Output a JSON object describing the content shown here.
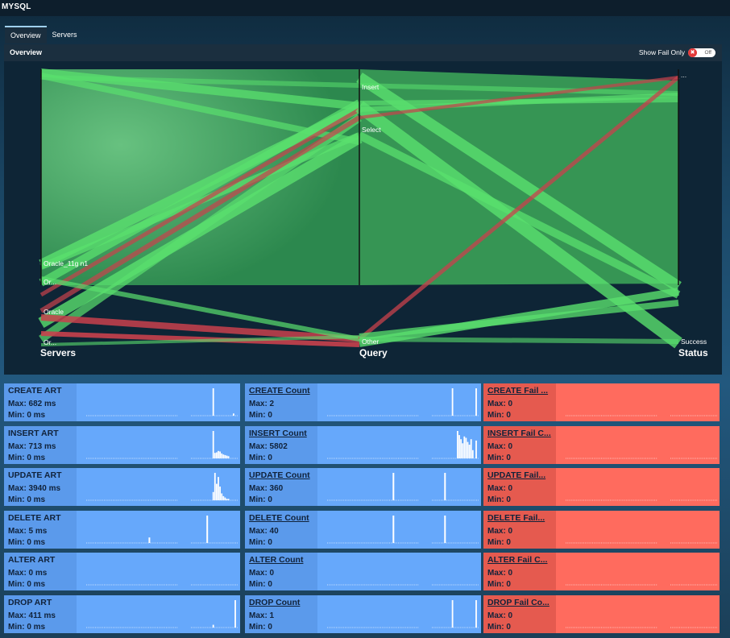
{
  "app": {
    "title": "MYSQL"
  },
  "tabs": [
    {
      "label": "Overview",
      "active": true
    },
    {
      "label": "Servers",
      "active": false
    }
  ],
  "panel": {
    "title": "Overview",
    "fail_toggle_label": "Show Fail Only",
    "fail_toggle_state": "Off"
  },
  "parallel_chart": {
    "axes": [
      {
        "title": "Servers",
        "ticks": [
          "Oracle_11g n1",
          "Or...",
          "Oracle",
          "Or..."
        ]
      },
      {
        "title": "Query",
        "ticks": [
          "Insert",
          "Select",
          "Other"
        ]
      },
      {
        "title": "Status",
        "ticks": [
          "...",
          "Success"
        ]
      }
    ],
    "colors": {
      "success": "#5ae06e",
      "fail": "#c8414c",
      "area": "#3a9e57"
    }
  },
  "metrics": [
    {
      "art": {
        "name": "CREATE ART",
        "max": "Max: 682 ms",
        "min": "Min: 0 ms",
        "bars": [
          0,
          0,
          0,
          0,
          0,
          0,
          0,
          0,
          1.0,
          0,
          0,
          0,
          0,
          0,
          0,
          0,
          0,
          0,
          0,
          0,
          0.08,
          0
        ]
      },
      "count": {
        "name": "CREATE Count",
        "max": "Max: 2",
        "min": "Min: 0",
        "bars": [
          0,
          0,
          0,
          0,
          0,
          0,
          0,
          1.0,
          0,
          0,
          0,
          0,
          0,
          0,
          0,
          0,
          0,
          0,
          0,
          0,
          0,
          1.0
        ]
      },
      "fail": {
        "name": "CREATE Fail ...",
        "max": "Max: 0",
        "min": "Min: 0"
      }
    },
    {
      "art": {
        "name": "INSERT ART",
        "max": "Max: 713 ms",
        "min": "Min: 0 ms",
        "bars": [
          0,
          0,
          0,
          0,
          0,
          0,
          0,
          0,
          1.0,
          0.2,
          0.22,
          0.27,
          0.25,
          0.18,
          0.14,
          0.12,
          0.1,
          0.08,
          0,
          0,
          0,
          0
        ]
      },
      "count": {
        "name": "INSERT Count",
        "max": "Max: 5802",
        "min": "Min: 0",
        "bars": [
          0,
          0,
          0,
          0,
          0,
          0,
          0,
          0,
          0,
          0,
          1.0,
          0.85,
          0.7,
          0.55,
          0.8,
          0.75,
          0.6,
          0.5,
          0.7,
          0.3,
          0,
          0.65
        ]
      },
      "fail": {
        "name": "INSERT Fail C...",
        "max": "Max: 0",
        "min": "Min: 0"
      }
    },
    {
      "art": {
        "name": "UPDATE ART",
        "max": "Max: 3940 ms",
        "min": "Min: 0 ms",
        "bars": [
          0,
          0,
          0,
          0,
          0,
          0,
          0,
          0,
          0.3,
          1.0,
          0.6,
          0.85,
          0.5,
          0.25,
          0.15,
          0.1,
          0.05,
          0.05,
          0,
          0,
          0,
          0
        ]
      },
      "count": {
        "name": "UPDATE Count",
        "max": "Max: 360",
        "min": "Min: 0",
        "bars": [
          0,
          0,
          0,
          0,
          0,
          0,
          0,
          0,
          0,
          0,
          0,
          0,
          0,
          0,
          0,
          0,
          0,
          0,
          0,
          0,
          0,
          0
        ],
        "spikes": [
          0.45,
          0.78
        ]
      },
      "fail": {
        "name": "UPDATE Fail...",
        "max": "Max: 0",
        "min": "Min: 0"
      }
    },
    {
      "art": {
        "name": "DELETE ART",
        "max": "Max: 5 ms",
        "min": "Min: 0 ms",
        "bars": [
          0,
          0,
          0,
          0,
          0,
          0,
          0,
          0,
          0,
          0,
          0,
          0,
          0,
          0,
          0,
          0,
          0,
          0,
          0,
          0,
          0,
          0
        ],
        "spikes": [
          0.43,
          0.8
        ],
        "spike_heights": [
          0.2,
          1.0
        ]
      },
      "count": {
        "name": "DELETE Count",
        "max": "Max: 40",
        "min": "Min: 0",
        "bars": [
          0,
          0,
          0,
          0,
          0,
          0,
          0,
          0,
          0,
          0,
          0,
          0,
          0,
          0,
          0,
          0,
          0,
          0,
          0,
          0,
          0,
          0
        ],
        "spikes": [
          0.45,
          0.78
        ]
      },
      "fail": {
        "name": "DELETE Fail...",
        "max": "Max: 0",
        "min": "Min: 0"
      }
    },
    {
      "art": {
        "name": "ALTER ART",
        "max": "Max: 0 ms",
        "min": "Min: 0 ms",
        "bars": []
      },
      "count": {
        "name": "ALTER Count",
        "max": "Max: 0",
        "min": "Min: 0",
        "bars": []
      },
      "fail": {
        "name": "ALTER Fail C...",
        "max": "Max: 0",
        "min": "Min: 0"
      }
    },
    {
      "art": {
        "name": "DROP ART",
        "max": "Max: 411 ms",
        "min": "Min: 0 ms",
        "bars": [
          0,
          0,
          0,
          0,
          0,
          0,
          0,
          0,
          0.1,
          0,
          0,
          0,
          0,
          0,
          0,
          0,
          0,
          0,
          0,
          0,
          0,
          1.0
        ]
      },
      "count": {
        "name": "DROP Count",
        "max": "Max: 1",
        "min": "Min: 0",
        "bars": [
          0,
          0,
          0,
          0,
          0,
          0,
          0,
          1.0,
          0,
          0,
          0,
          0,
          0,
          0,
          0,
          0,
          0,
          0,
          0,
          0,
          0,
          1.0
        ]
      },
      "fail": {
        "name": "DROP Fail Co...",
        "max": "Max: 0",
        "min": "Min: 0"
      }
    }
  ]
}
